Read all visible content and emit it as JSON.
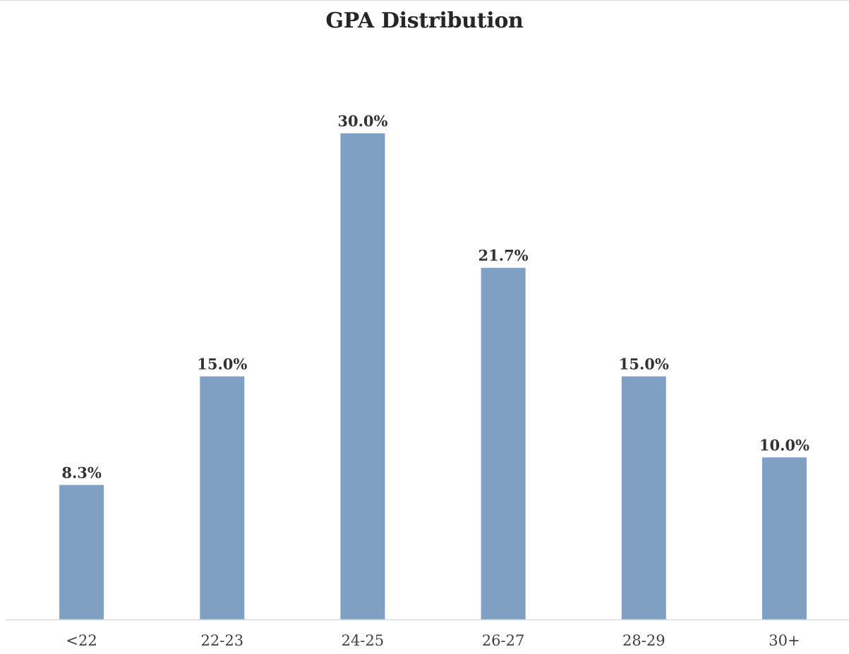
{
  "chart_data": {
    "type": "bar",
    "title": "GPA Distribution",
    "xlabel": "",
    "ylabel": "",
    "categories": [
      "<22",
      "22-23",
      "24-25",
      "26-27",
      "28-29",
      "30+"
    ],
    "values": [
      8.3,
      15.0,
      30.0,
      21.7,
      15.0,
      10.0
    ],
    "data_labels": [
      "8.3%",
      "15.0%",
      "30.0%",
      "21.7%",
      "15.0%",
      "10.0%"
    ],
    "unit": "%",
    "ylim": [
      0,
      30
    ],
    "grid": false,
    "legend": "none",
    "colors": {
      "bar": "#7f9fc3",
      "axis": "#d9d9d9",
      "title": "#262626",
      "data_label": "#333333",
      "tick_label": "#404040"
    }
  }
}
